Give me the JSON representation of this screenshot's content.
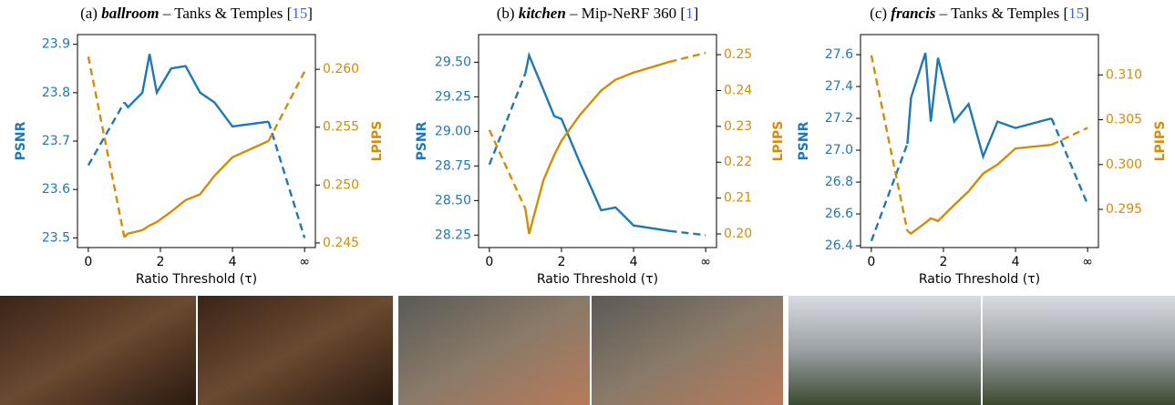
{
  "chart_data": [
    {
      "type": "line",
      "dashed_ends": true,
      "title": [
        "(a) ",
        "ballroom",
        " – Tanks & Temples [",
        "15",
        "]"
      ],
      "xlabel": "Ratio Threshold (τ)",
      "x": [
        0,
        1,
        1.1,
        1.5,
        1.7,
        1.9,
        2.3,
        2.7,
        3.1,
        3.5,
        4,
        5,
        6
      ],
      "xlim": [
        -0.3,
        6.3
      ],
      "xticks": [
        0,
        2,
        4,
        {
          "value": 6,
          "label": "∞"
        }
      ],
      "ylim": [
        23.48,
        23.92
      ],
      "yticks": [
        23.5,
        23.6,
        23.7,
        23.8,
        23.9
      ],
      "y2lim": [
        0.2446,
        0.263
      ],
      "y2ticks": [
        0.245,
        {
          "value": 0.25,
          "label": "0.250"
        },
        0.255,
        {
          "value": 0.26,
          "label": "0.260"
        }
      ],
      "series": [
        {
          "name": "PSNR",
          "color": "#1f77b4",
          "values": [
            23.65,
            23.78,
            23.77,
            23.8,
            23.88,
            23.8,
            23.85,
            23.855,
            23.8,
            23.78,
            23.73,
            23.74,
            23.5
          ]
        },
        {
          "name": "LPIPS",
          "color": "#d48b06",
          "axis": "y2",
          "values": [
            0.2611,
            0.2455,
            0.2458,
            0.2461,
            0.2465,
            0.2468,
            0.2477,
            0.2487,
            0.2492,
            0.2508,
            0.2524,
            0.2538,
            0.2598
          ]
        }
      ]
    },
    {
      "type": "line",
      "dashed_ends": true,
      "title": [
        "(b) ",
        "kitchen",
        " – Mip-NeRF 360 [",
        "1",
        "]"
      ],
      "xlabel": "Ratio Threshold (τ)",
      "x": [
        0,
        1,
        1.1,
        1.5,
        1.8,
        2,
        2.5,
        3.1,
        3.5,
        4,
        5,
        6
      ],
      "xlim": [
        -0.3,
        6.3
      ],
      "xticks": [
        0,
        2,
        4,
        {
          "value": 6,
          "label": "∞"
        }
      ],
      "ylim": [
        28.16,
        29.7
      ],
      "yticks": [
        28.25,
        {
          "value": 28.5,
          "label": "28.50"
        },
        28.75,
        {
          "value": 29,
          "label": "29.00"
        },
        29.25,
        {
          "value": 29.5,
          "label": "29.50"
        }
      ],
      "y2lim": [
        0.1962,
        0.2556
      ],
      "y2ticks": [
        {
          "value": 0.2,
          "label": "0.20"
        },
        0.21,
        0.22,
        0.23,
        0.24,
        0.25
      ],
      "series": [
        {
          "name": "PSNR",
          "color": "#1f77b4",
          "values": [
            28.76,
            29.42,
            29.55,
            29.3,
            29.11,
            29.09,
            28.78,
            28.43,
            28.45,
            28.32,
            28.28,
            28.25
          ]
        },
        {
          "name": "LPIPS",
          "color": "#d48b06",
          "axis": "y2",
          "values": [
            0.229,
            0.207,
            0.2,
            0.215,
            0.222,
            0.226,
            0.233,
            0.24,
            0.243,
            0.245,
            0.248,
            0.2505
          ]
        }
      ]
    },
    {
      "type": "line",
      "dashed_ends": true,
      "title": [
        "(c) ",
        "francis",
        " – Tanks & Temples [",
        "15",
        "]"
      ],
      "xlabel": "Ratio Threshold (τ)",
      "x": [
        0,
        1,
        1.1,
        1.5,
        1.65,
        1.85,
        2.3,
        2.7,
        3.1,
        3.5,
        4,
        5,
        6
      ],
      "xlim": [
        -0.3,
        6.3
      ],
      "xticks": [
        0,
        2,
        4,
        {
          "value": 6,
          "label": "∞"
        }
      ],
      "ylim": [
        26.389,
        27.726
      ],
      "yticks": [
        26.4,
        26.6,
        26.8,
        {
          "value": 27,
          "label": "27.0"
        },
        27.2,
        27.4,
        27.6
      ],
      "y2lim": [
        0.29074,
        0.3145
      ],
      "y2ticks": [
        0.295,
        {
          "value": 0.3,
          "label": "0.300"
        },
        0.305,
        {
          "value": 0.31,
          "label": "0.310"
        }
      ],
      "series": [
        {
          "name": "PSNR",
          "color": "#1f77b4",
          "values": [
            26.43,
            27.04,
            27.33,
            27.61,
            27.18,
            27.58,
            27.18,
            27.29,
            26.96,
            27.18,
            27.14,
            27.2,
            26.66
          ]
        },
        {
          "name": "LPIPS",
          "color": "#d48b06",
          "axis": "y2",
          "values": [
            0.3122,
            0.2926,
            0.2923,
            0.2935,
            0.294,
            0.2937,
            0.2955,
            0.297,
            0.299,
            0.3,
            0.3018,
            0.3022,
            0.3041
          ]
        }
      ]
    }
  ]
}
